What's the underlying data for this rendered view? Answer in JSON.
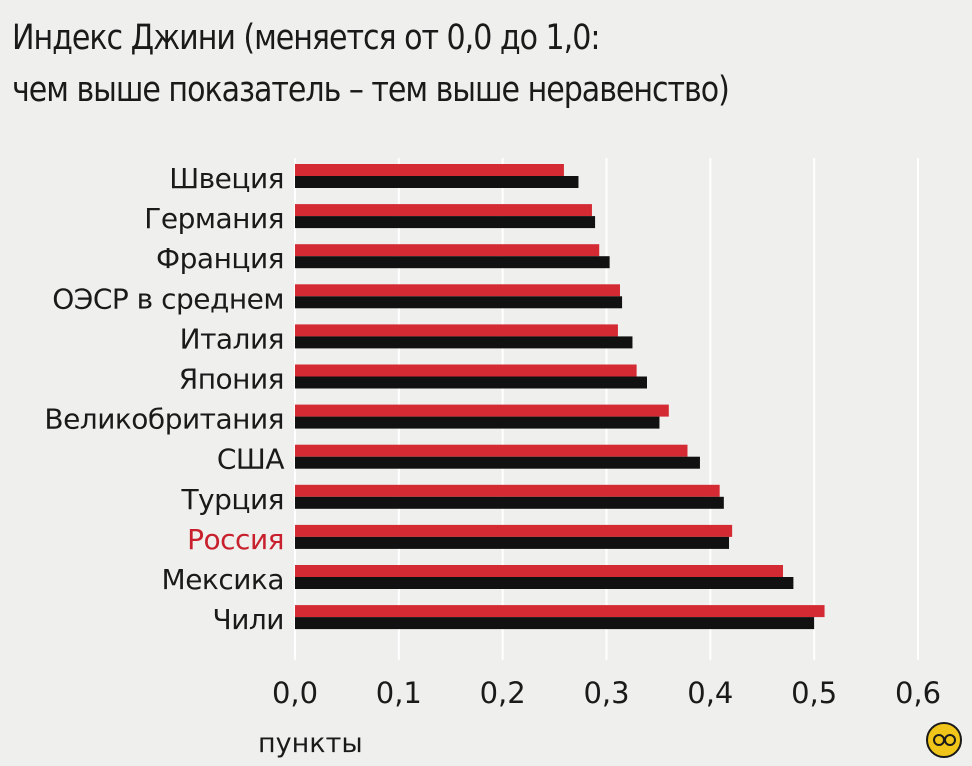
{
  "chart_data": {
    "type": "bar",
    "orientation": "horizontal",
    "title": [
      "Индекс Джини (меняется от 0,0 до 1,0:",
      "чем выше показатель – тем выше неравенство)"
    ],
    "xlabel": "пункты",
    "xlim": [
      0,
      0.6
    ],
    "xticks": [
      "0,0",
      "0,1",
      "0,2",
      "0,3",
      "0,4",
      "0,5",
      "0,6"
    ],
    "grid": true,
    "legend": "none",
    "highlight_category": "Россия",
    "categories": [
      "Швеция",
      "Германия",
      "Франция",
      "ОЭСР в среднем",
      "Италия",
      "Япония",
      "Великобритания",
      "США",
      "Турция",
      "Россия",
      "Мексика",
      "Чили"
    ],
    "series": [
      {
        "color": "#d42a34",
        "values": [
          0.259,
          0.286,
          0.293,
          0.313,
          0.311,
          0.329,
          0.36,
          0.378,
          0.409,
          0.421,
          0.47,
          0.51
        ]
      },
      {
        "color": "#111111",
        "values": [
          0.273,
          0.289,
          0.303,
          0.315,
          0.325,
          0.339,
          0.351,
          0.39,
          0.413,
          0.418,
          0.48,
          0.5
        ]
      }
    ]
  },
  "badge": {
    "icon": "eyes-emoji-icon"
  }
}
